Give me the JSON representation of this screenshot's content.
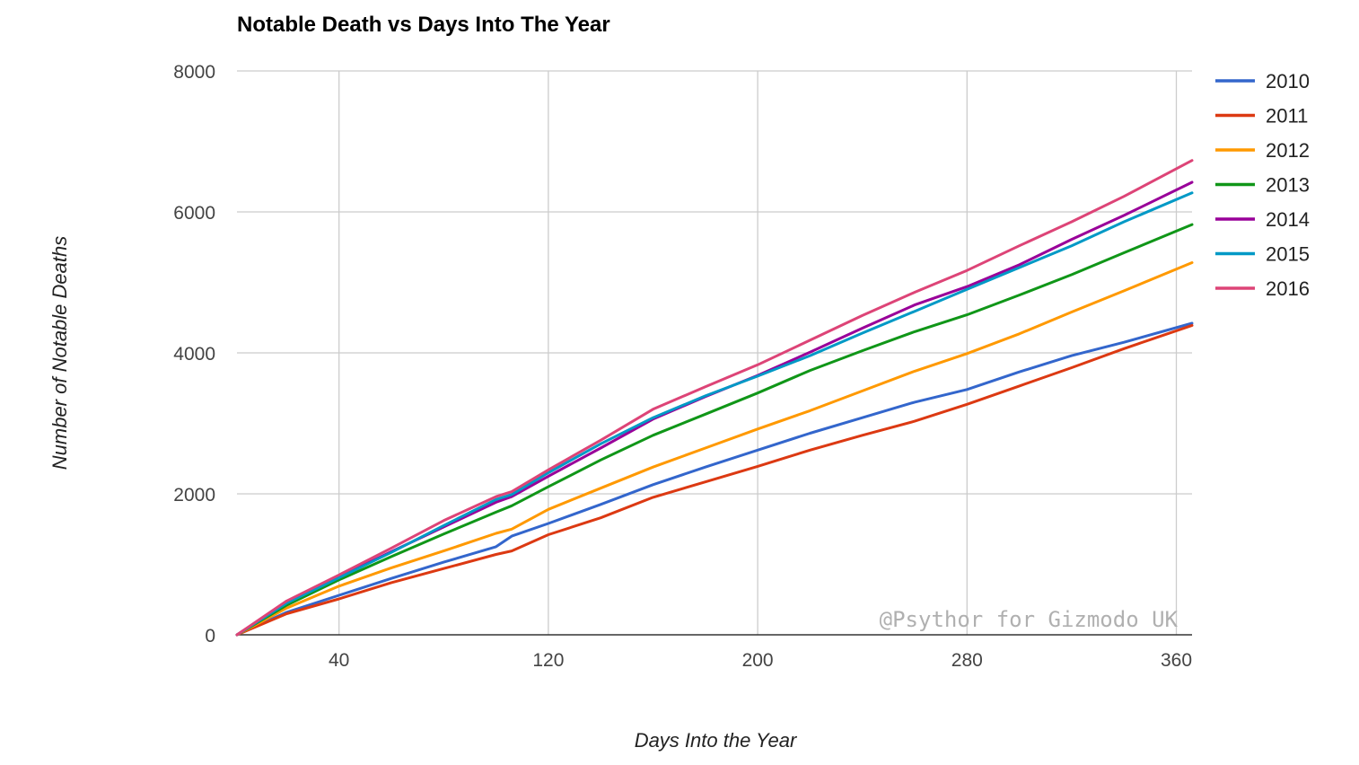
{
  "chart_data": {
    "type": "line",
    "title": "Notable Death vs Days Into The Year",
    "xlabel": "Days Into the Year",
    "ylabel": "Number of Notable Deaths",
    "xlim": [
      1,
      366
    ],
    "ylim": [
      0,
      8000
    ],
    "x_ticks": [
      40,
      120,
      200,
      280,
      360
    ],
    "y_ticks": [
      0,
      2000,
      4000,
      6000,
      8000
    ],
    "grid": true,
    "legend_position": "right",
    "watermark": "@Psythor for Gizmodo UK",
    "x": [
      1,
      20,
      40,
      60,
      80,
      100,
      106,
      120,
      140,
      160,
      180,
      200,
      220,
      240,
      260,
      280,
      300,
      320,
      340,
      366
    ],
    "series": [
      {
        "name": "2010",
        "color": "#3366cc",
        "values": [
          0,
          320,
          560,
          800,
          1030,
          1250,
          1400,
          1580,
          1850,
          2130,
          2380,
          2620,
          2860,
          3080,
          3300,
          3480,
          3730,
          3960,
          4150,
          4420
        ]
      },
      {
        "name": "2011",
        "color": "#dc3912",
        "values": [
          0,
          300,
          510,
          740,
          940,
          1140,
          1190,
          1420,
          1660,
          1950,
          2170,
          2390,
          2620,
          2830,
          3030,
          3270,
          3530,
          3790,
          4060,
          4390
        ]
      },
      {
        "name": "2012",
        "color": "#ff9900",
        "values": [
          0,
          380,
          690,
          950,
          1190,
          1440,
          1500,
          1780,
          2080,
          2380,
          2650,
          2920,
          3180,
          3460,
          3740,
          3990,
          4270,
          4580,
          4880,
          5280
        ]
      },
      {
        "name": "2013",
        "color": "#109618",
        "values": [
          0,
          420,
          780,
          1110,
          1430,
          1740,
          1830,
          2100,
          2480,
          2830,
          3130,
          3430,
          3750,
          4030,
          4300,
          4540,
          4820,
          5110,
          5420,
          5820
        ]
      },
      {
        "name": "2014",
        "color": "#990099",
        "values": [
          0,
          460,
          820,
          1180,
          1530,
          1880,
          1960,
          2250,
          2650,
          3060,
          3380,
          3680,
          4010,
          4350,
          4680,
          4940,
          5250,
          5610,
          5950,
          6420
        ]
      },
      {
        "name": "2015",
        "color": "#0099c6",
        "values": [
          0,
          450,
          810,
          1170,
          1550,
          1920,
          1990,
          2300,
          2710,
          3080,
          3390,
          3670,
          3960,
          4280,
          4590,
          4900,
          5210,
          5520,
          5860,
          6270
        ]
      },
      {
        "name": "2016",
        "color": "#dd4477",
        "values": [
          0,
          480,
          850,
          1230,
          1620,
          1960,
          2030,
          2340,
          2760,
          3200,
          3520,
          3830,
          4180,
          4530,
          4860,
          5170,
          5520,
          5860,
          6220,
          6730
        ]
      }
    ]
  }
}
